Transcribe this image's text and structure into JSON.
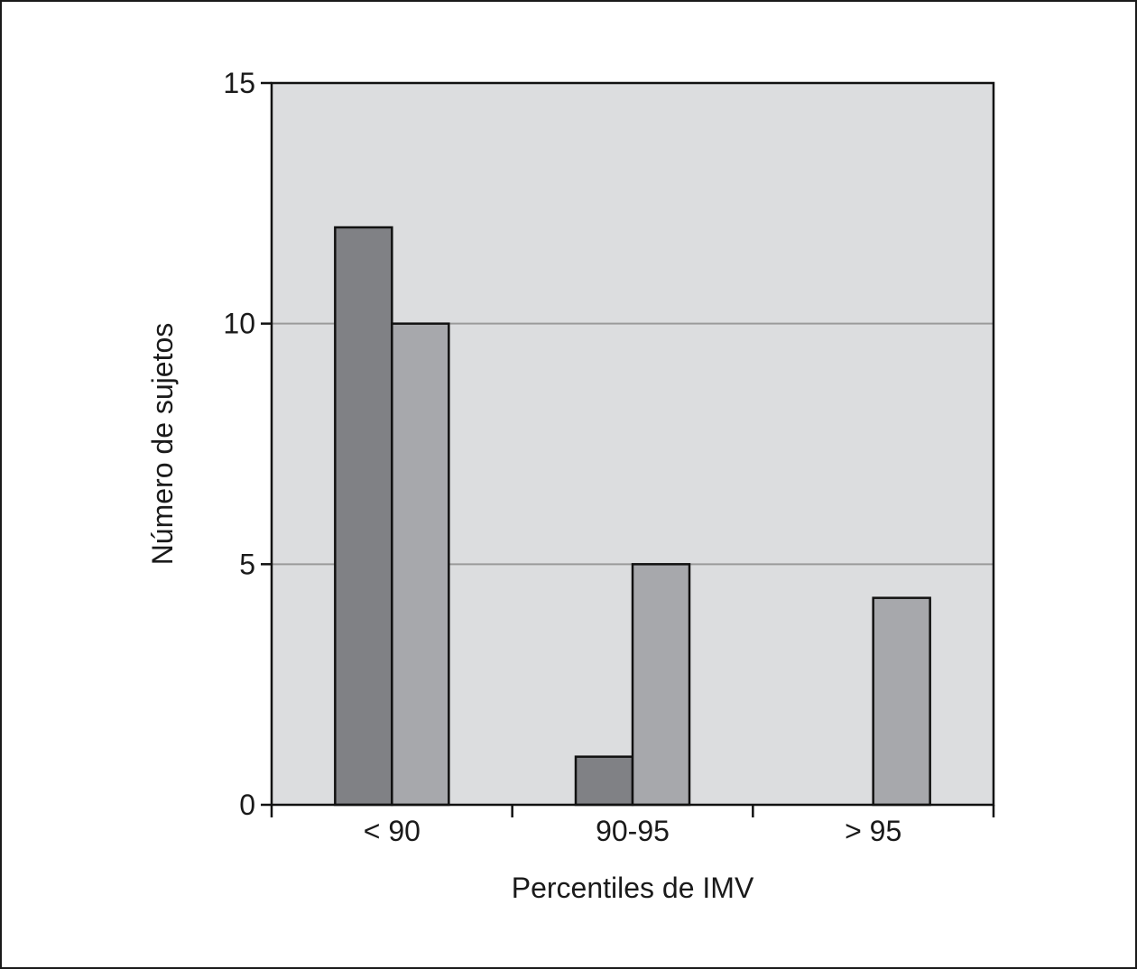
{
  "chart_data": {
    "type": "bar",
    "title": "",
    "xlabel": "Percentiles de IMV",
    "ylabel": "Número de sujetos",
    "categories": [
      "< 90",
      "90-95",
      "> 95"
    ],
    "series": [
      {
        "values": [
          12,
          1,
          0
        ],
        "color": "#808185"
      },
      {
        "values": [
          10,
          5,
          4.3
        ],
        "color": "#a7a8ac"
      }
    ],
    "ylim": [
      0,
      15
    ],
    "yticks": [
      0,
      5,
      10,
      15
    ],
    "grid": true,
    "plot_background": "#dcdddf",
    "gridline_color": "#9a9a9a",
    "legend": "none"
  }
}
